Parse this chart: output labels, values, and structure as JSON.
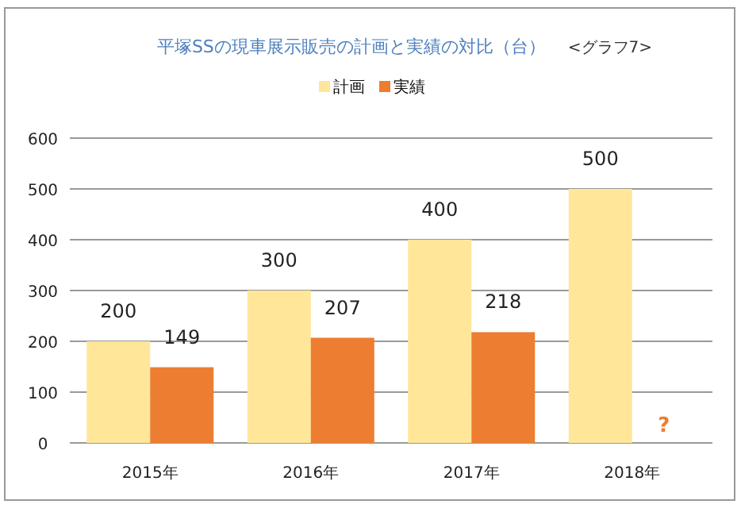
{
  "chart_data": {
    "type": "bar",
    "title": "平塚SSの現車展示販売の計画と実績の対比（台）",
    "subtitle": "<グラフ7>",
    "categories": [
      "2015年",
      "2016年",
      "2017年",
      "2018年"
    ],
    "series": [
      {
        "name": "計画",
        "color": "#ffe699",
        "values": [
          200,
          300,
          400,
          500
        ],
        "value_labels": [
          "200",
          "300",
          "400",
          "500"
        ]
      },
      {
        "name": "実績",
        "color": "#ed7d31",
        "values": [
          149,
          207,
          218,
          null
        ],
        "value_labels": [
          "149",
          "207",
          "218",
          "?"
        ]
      }
    ],
    "ylim": [
      0,
      600
    ],
    "yticks": [
      0,
      100,
      200,
      300,
      400,
      500,
      600
    ],
    "grid": "y",
    "legend": "top"
  }
}
